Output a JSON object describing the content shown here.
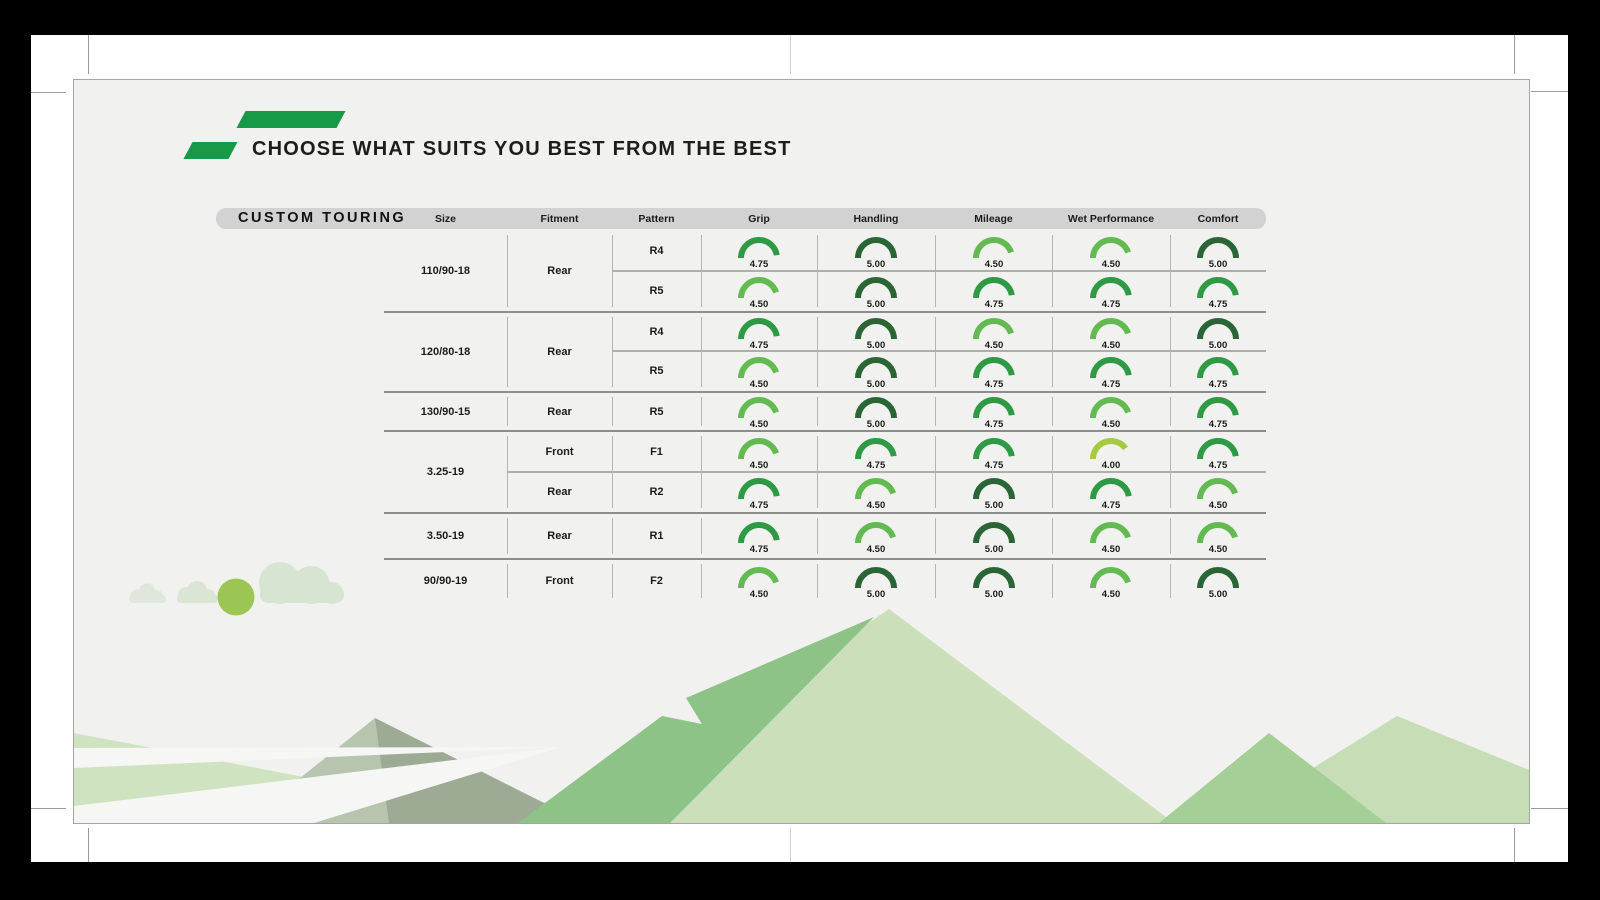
{
  "title": {
    "heading": "CHOOSE WHAT SUITS YOU BEST FROM THE BEST"
  },
  "brand_color": "#169a47",
  "table": {
    "name": "CUSTOM TOURING",
    "columns": [
      "Size",
      "Fitment",
      "Pattern",
      "Grip",
      "Handling",
      "Mileage",
      "Wet Performance",
      "Comfort"
    ],
    "rating_colors": {
      "5.00": "#2b6535",
      "4.75": "#2f9a44",
      "4.50": "#62ba50",
      "4.00": "#a6ca40"
    },
    "groups": [
      {
        "size": "110/90-18",
        "fitment": "Rear",
        "rows": [
          {
            "pattern": "R4",
            "ratings": [
              "4.75",
              "5.00",
              "4.50",
              "4.50",
              "5.00"
            ]
          },
          {
            "pattern": "R5",
            "ratings": [
              "4.50",
              "5.00",
              "4.75",
              "4.75",
              "4.75"
            ]
          }
        ]
      },
      {
        "size": "120/80-18",
        "fitment": "Rear",
        "rows": [
          {
            "pattern": "R4",
            "ratings": [
              "4.75",
              "5.00",
              "4.50",
              "4.50",
              "5.00"
            ]
          },
          {
            "pattern": "R5",
            "ratings": [
              "4.50",
              "5.00",
              "4.75",
              "4.75",
              "4.75"
            ]
          }
        ]
      },
      {
        "size": "130/90-15",
        "fitment": "Rear",
        "rows": [
          {
            "pattern": "R5",
            "ratings": [
              "4.50",
              "5.00",
              "4.75",
              "4.50",
              "4.75"
            ]
          }
        ]
      },
      {
        "size": "3.25-19",
        "rows": [
          {
            "fitment": "Front",
            "pattern": "F1",
            "ratings": [
              "4.50",
              "4.75",
              "4.75",
              "4.00",
              "4.75"
            ]
          },
          {
            "fitment": "Rear",
            "pattern": "R2",
            "ratings": [
              "4.75",
              "4.50",
              "5.00",
              "4.75",
              "4.50"
            ]
          }
        ]
      },
      {
        "size": "3.50-19",
        "fitment": "Rear",
        "rows": [
          {
            "pattern": "R1",
            "ratings": [
              "4.75",
              "4.50",
              "5.00",
              "4.50",
              "4.50"
            ]
          }
        ]
      },
      {
        "size": "90/90-19",
        "fitment": "Front",
        "rows": [
          {
            "pattern": "F2",
            "ratings": [
              "4.50",
              "5.00",
              "5.00",
              "4.50",
              "5.00"
            ]
          }
        ]
      }
    ]
  },
  "chart_data": {
    "type": "table",
    "title": "CUSTOM TOURING",
    "columns": [
      "Size",
      "Fitment",
      "Pattern",
      "Grip",
      "Handling",
      "Mileage",
      "Wet Performance",
      "Comfort"
    ],
    "scale_max": 5,
    "gauge_style": {
      "shape": "semicircle-arc",
      "sweep_rule": "value / 5 * 180deg",
      "color_by_value": {
        "5.00": "#2b6535",
        "4.75": "#2f9a44",
        "4.50": "#62ba50",
        "4.00": "#a6ca40"
      }
    },
    "rows": [
      [
        "110/90-18",
        "Rear",
        "R4",
        4.75,
        5.0,
        4.5,
        4.5,
        5.0
      ],
      [
        "110/90-18",
        "Rear",
        "R5",
        4.5,
        5.0,
        4.75,
        4.75,
        4.75
      ],
      [
        "120/80-18",
        "Rear",
        "R4",
        4.75,
        5.0,
        4.5,
        4.5,
        5.0
      ],
      [
        "120/80-18",
        "Rear",
        "R5",
        4.5,
        5.0,
        4.75,
        4.75,
        4.75
      ],
      [
        "130/90-15",
        "Rear",
        "R5",
        4.5,
        5.0,
        4.75,
        4.5,
        4.75
      ],
      [
        "3.25-19",
        "Front",
        "F1",
        4.5,
        4.75,
        4.75,
        4.0,
        4.75
      ],
      [
        "3.25-19",
        "Rear",
        "R2",
        4.75,
        4.5,
        5.0,
        4.75,
        4.5
      ],
      [
        "3.50-19",
        "Rear",
        "R1",
        4.75,
        4.5,
        5.0,
        4.5,
        4.5
      ],
      [
        "90/90-19",
        "Front",
        "F2",
        4.5,
        5.0,
        5.0,
        4.5,
        5.0
      ]
    ]
  }
}
